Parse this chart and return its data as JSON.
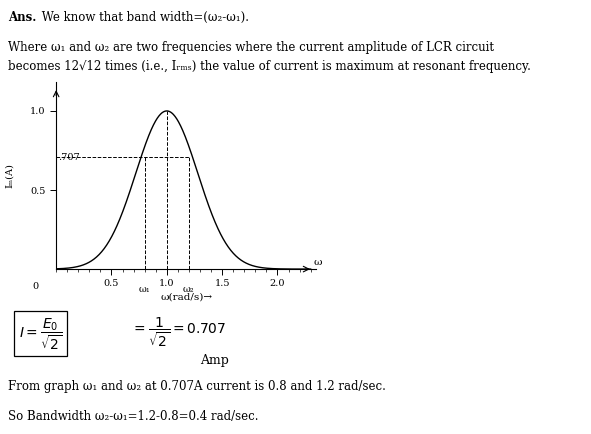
{
  "ans_bold": "Ans.",
  "ans_rest": " We know that band width=(ω₂-ω₁).",
  "line1": "Where ω₁ and ω₂ are two frequencies where the current amplitude of LCR circuit",
  "line2": "becomes 12√12 times (i.e., Iᵣₘₛ) the value of current is maximum at resonant frequency.",
  "xlabel": "ω(rad/s)→",
  "ylabel": "Iₘ(A)",
  "omega_label": "ω",
  "omega1_label": "ω₁",
  "omega2_label": "ω₂",
  "peak_omega": 1.0,
  "peak_amplitude": 1.0,
  "omega1": 0.8,
  "omega2": 1.2,
  "half_power_level": 0.707,
  "half_power_label": ".707",
  "xticks": [
    0.5,
    1.0,
    1.5,
    2.0
  ],
  "yticks": [
    0.5,
    1.0
  ],
  "xlim": [
    0,
    2.35
  ],
  "ylim": [
    0,
    1.18
  ],
  "sigma": 0.28,
  "formula_amp": "Amp",
  "from_graph_text": "From graph ω₁ and ω₂ at 0.707A current is 0.8 and 1.2 rad/sec.",
  "bandwidth_text": "So Bandwidth ω₂-ω₁=1.2-0.8=0.4 rad/sec.",
  "curve_color": "#000000",
  "dashed_color": "#000000",
  "background": "#ffffff"
}
